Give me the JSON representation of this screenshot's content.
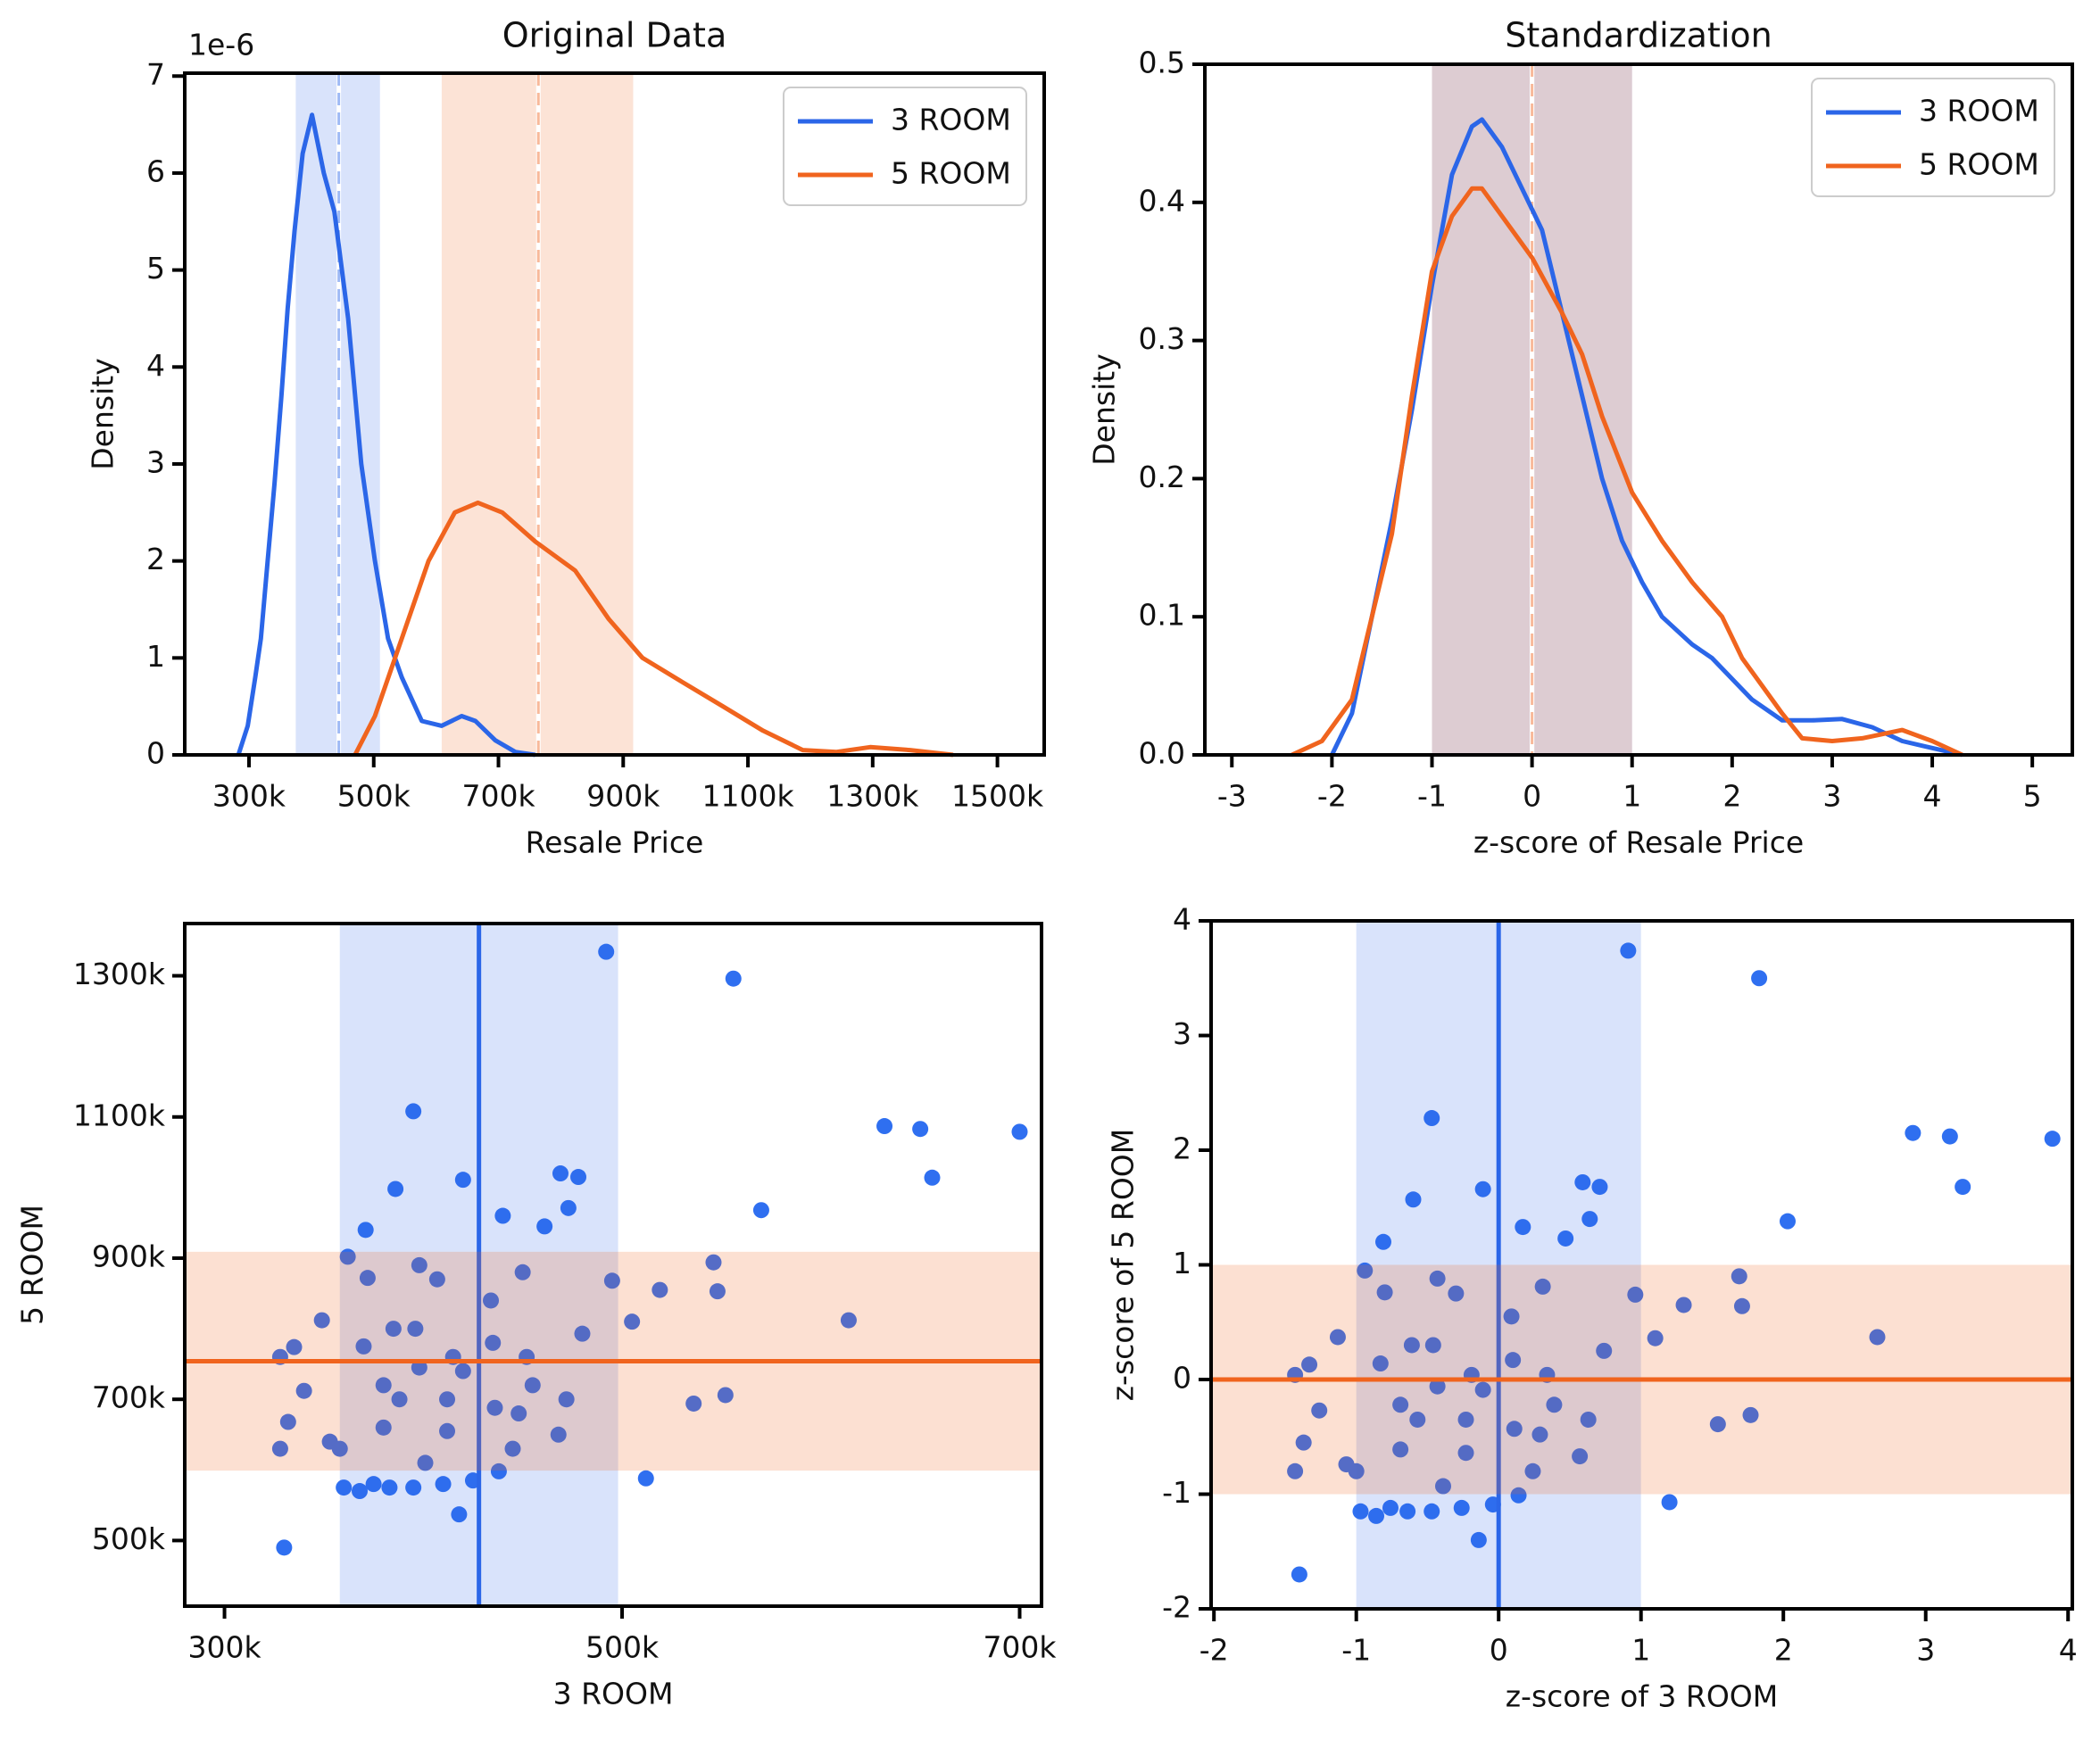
{
  "chart_data": [
    {
      "type": "line",
      "title": "Original Data",
      "xlabel": "Resale Price",
      "ylabel": "Density",
      "offset_label": "1e-6",
      "xlim": [
        197000,
        1575000
      ],
      "ylim": [
        0,
        7.03
      ],
      "xticks": [
        {
          "value": 300000,
          "label": "300k"
        },
        {
          "value": 500000,
          "label": "500k"
        },
        {
          "value": 700000,
          "label": "700k"
        },
        {
          "value": 900000,
          "label": "900k"
        },
        {
          "value": 1100000,
          "label": "1100k"
        },
        {
          "value": 1300000,
          "label": "1300k"
        },
        {
          "value": 1500000,
          "label": "1500k"
        }
      ],
      "yticks": [
        0,
        1,
        2,
        3,
        4,
        5,
        6,
        7
      ],
      "legend": "upper right",
      "series": [
        {
          "name": "3 ROOM",
          "color": "#2b66e8",
          "mean": 444000,
          "band": [
            375000,
            510000
          ],
          "x": [
            283000,
            298000,
            310000,
            319000,
            330000,
            341000,
            352000,
            362000,
            373000,
            386000,
            401000,
            420000,
            437000,
            459000,
            480000,
            502000,
            523000,
            545000,
            577000,
            609000,
            641000,
            663000,
            695000,
            727000,
            759000
          ],
          "values": [
            0,
            0.3,
            0.8,
            1.2,
            2.0,
            2.8,
            3.7,
            4.6,
            5.4,
            6.2,
            6.6,
            6.0,
            5.6,
            4.5,
            3.0,
            2.0,
            1.2,
            0.8,
            0.35,
            0.3,
            0.4,
            0.35,
            0.15,
            0.03,
            0
          ]
        },
        {
          "name": "5 ROOM",
          "color": "#f0641e",
          "mean": 764000,
          "band": [
            609000,
            916000
          ],
          "x": [
            470000,
            502000,
            545000,
            588000,
            630000,
            667000,
            706000,
            759000,
            823000,
            877000,
            931000,
            995000,
            1060000,
            1124000,
            1188000,
            1242000,
            1296000,
            1360000,
            1429000
          ],
          "values": [
            0,
            0.4,
            1.2,
            2.0,
            2.5,
            2.6,
            2.5,
            2.2,
            1.9,
            1.4,
            1.0,
            0.75,
            0.5,
            0.25,
            0.05,
            0.03,
            0.08,
            0.05,
            0
          ]
        }
      ]
    },
    {
      "type": "line",
      "title": "Standardization",
      "xlabel": "z-score of Resale Price",
      "ylabel": "Density",
      "xlim": [
        -3.27,
        5.4
      ],
      "ylim": [
        0,
        0.5
      ],
      "xticks": [
        -3,
        -2,
        -1,
        0,
        1,
        2,
        3,
        4,
        5
      ],
      "yticks": [
        {
          "value": 0,
          "label": "0.0"
        },
        0.1,
        0.2,
        0.3,
        0.4,
        0.5
      ],
      "legend": "upper right",
      "series": [
        {
          "name": "3 ROOM",
          "color": "#2b66e8",
          "mean": 0,
          "band": [
            -1,
            1
          ],
          "x": [
            -2.0,
            -1.8,
            -1.6,
            -1.4,
            -1.2,
            -1.0,
            -0.8,
            -0.6,
            -0.5,
            -0.3,
            -0.1,
            0.1,
            0.3,
            0.5,
            0.7,
            0.9,
            1.1,
            1.3,
            1.6,
            1.8,
            2.0,
            2.2,
            2.5,
            2.8,
            3.1,
            3.4,
            3.7,
            4.0,
            4.3
          ],
          "values": [
            0,
            0.03,
            0.1,
            0.17,
            0.25,
            0.34,
            0.42,
            0.455,
            0.46,
            0.44,
            0.41,
            0.38,
            0.32,
            0.26,
            0.2,
            0.155,
            0.125,
            0.1,
            0.08,
            0.07,
            0.055,
            0.04,
            0.025,
            0.025,
            0.026,
            0.02,
            0.01,
            0.005,
            0
          ]
        },
        {
          "name": "5 ROOM",
          "color": "#f0641e",
          "mean": 0,
          "band": [
            -1,
            1
          ],
          "x": [
            -2.4,
            -2.1,
            -1.8,
            -1.6,
            -1.4,
            -1.2,
            -1.0,
            -0.8,
            -0.6,
            -0.5,
            -0.3,
            0,
            0.3,
            0.5,
            0.7,
            1.0,
            1.3,
            1.6,
            1.9,
            2.1,
            2.3,
            2.5,
            2.7,
            3.0,
            3.3,
            3.7,
            4.0,
            4.3
          ],
          "values": [
            0,
            0.01,
            0.04,
            0.1,
            0.16,
            0.26,
            0.35,
            0.39,
            0.41,
            0.41,
            0.39,
            0.36,
            0.32,
            0.29,
            0.245,
            0.19,
            0.155,
            0.125,
            0.1,
            0.07,
            0.05,
            0.03,
            0.012,
            0.01,
            0.012,
            0.018,
            0.01,
            0
          ]
        }
      ]
    },
    {
      "type": "scatter",
      "xlabel": "3 ROOM",
      "ylabel": "5 ROOM",
      "color": "#2f6ff0",
      "xlim": [
        280000,
        711000
      ],
      "ylim": [
        407000,
        1374000
      ],
      "xticks": [
        {
          "value": 300000,
          "label": "300k"
        },
        {
          "value": 500000,
          "label": "500k"
        },
        {
          "value": 700000,
          "label": "700k"
        }
      ],
      "yticks": [
        {
          "value": 500000,
          "label": "500k"
        },
        {
          "value": 700000,
          "label": "700k"
        },
        {
          "value": 900000,
          "label": "900k"
        },
        {
          "value": 1100000,
          "label": "1100k"
        },
        {
          "value": 1300000,
          "label": "1300k"
        }
      ],
      "reference": [
        {
          "axis": "x",
          "mean": 428000,
          "band": [
            358000,
            498000
          ],
          "color": "#2b66e8"
        },
        {
          "axis": "y",
          "mean": 754000,
          "band": [
            599000,
            909000
          ],
          "color": "#f0641e"
        }
      ],
      "x": [
        492000,
        556000,
        395000,
        632000,
        650000,
        700000,
        656000,
        570000,
        420000,
        469000,
        478000,
        473000,
        461000,
        440000,
        386000,
        371000,
        512000,
        330000,
        614000,
        519000,
        546000,
        548000,
        505000,
        552000,
        536000,
        495000,
        480000,
        450000,
        434000,
        407000,
        398000,
        385000,
        372000,
        362000,
        349000,
        335000,
        328000,
        332000,
        328000,
        340000,
        353000,
        360000,
        368000,
        375000,
        383000,
        395000,
        401000,
        410000,
        418000,
        425000,
        438000,
        445000,
        448000,
        436000,
        412000,
        398000,
        380000,
        370000,
        396000,
        415000,
        435000,
        452000,
        468000,
        472000,
        455000,
        380000,
        358000,
        388000,
        412000,
        420000
      ],
      "values": [
        1334000,
        1296000,
        1108000,
        1087000,
        1083000,
        1079000,
        1014000,
        968000,
        1011000,
        1020000,
        1015000,
        971000,
        945000,
        960000,
        998000,
        940000,
        588000,
        490000,
        812000,
        855000,
        894000,
        853000,
        810000,
        706000,
        694000,
        868000,
        793000,
        880000,
        840000,
        870000,
        890000,
        800000,
        872000,
        902000,
        812000,
        774000,
        760000,
        668000,
        630000,
        712000,
        640000,
        575000,
        570000,
        580000,
        575000,
        575000,
        610000,
        580000,
        537000,
        585000,
        598000,
        630000,
        680000,
        688000,
        700000,
        745000,
        720000,
        775000,
        800000,
        760000,
        780000,
        760000,
        650000,
        700000,
        720000,
        660000,
        630000,
        700000,
        655000,
        740000
      ]
    },
    {
      "type": "scatter",
      "xlabel": "z-score of 3 ROOM",
      "ylabel": "z-score of 5 ROOM",
      "color": "#2f6ff0",
      "xlim": [
        -2.02,
        4.03
      ],
      "ylim": [
        -2,
        4
      ],
      "xticks": [
        -2,
        -1,
        0,
        1,
        2,
        3,
        4
      ],
      "yticks": [
        -2,
        -1,
        0,
        1,
        2,
        3,
        4
      ],
      "reference": [
        {
          "axis": "x",
          "mean": 0,
          "band": [
            -1,
            1
          ],
          "color": "#2b66e8"
        },
        {
          "axis": "y",
          "mean": 0,
          "band": [
            -1,
            1
          ],
          "color": "#f0641e"
        }
      ],
      "x": [
        0.91,
        1.83,
        -0.47,
        2.91,
        3.17,
        3.89,
        3.26,
        2.03,
        -0.11,
        0.59,
        0.71,
        0.64,
        0.47,
        0.17,
        -0.6,
        -0.81,
        1.2,
        -1.4,
        2.66,
        1.3,
        1.69,
        1.71,
        1.1,
        1.77,
        1.54,
        0.96,
        0.74,
        0.31,
        0.09,
        -0.3,
        -0.43,
        -0.61,
        -0.8,
        -0.94,
        -1.13,
        -1.33,
        -1.43,
        -1.37,
        -1.43,
        -1.26,
        -1.07,
        -0.97,
        -0.86,
        -0.76,
        -0.64,
        -0.47,
        -0.39,
        -0.26,
        -0.14,
        -0.04,
        0.14,
        0.24,
        0.29,
        0.11,
        -0.23,
        -0.43,
        -0.69,
        -0.83,
        -0.46,
        -0.19,
        0.1,
        0.34,
        0.57,
        0.63,
        0.39,
        -0.69,
        -1.0,
        -0.57,
        -0.23,
        -0.11
      ],
      "values": [
        3.74,
        3.5,
        2.28,
        2.15,
        2.12,
        2.1,
        1.68,
        1.38,
        1.66,
        1.72,
        1.68,
        1.4,
        1.23,
        1.33,
        1.57,
        1.2,
        -1.07,
        -1.7,
        0.37,
        0.65,
        0.9,
        0.64,
        0.36,
        -0.31,
        -0.39,
        0.74,
        0.25,
        0.81,
        0.55,
        0.75,
        0.88,
        0.3,
        0.76,
        0.95,
        0.37,
        0.13,
        0.04,
        -0.55,
        -0.8,
        -0.27,
        -0.74,
        -1.15,
        -1.19,
        -1.12,
        -1.15,
        -1.15,
        -0.93,
        -1.12,
        -1.4,
        -1.09,
        -1.01,
        -0.8,
        -0.48,
        -0.43,
        -0.35,
        -0.06,
        -0.22,
        0.14,
        0.3,
        0.04,
        0.17,
        0.04,
        -0.67,
        -0.35,
        -0.22,
        -0.61,
        -0.8,
        -0.35,
        -0.64,
        -0.09
      ]
    }
  ]
}
